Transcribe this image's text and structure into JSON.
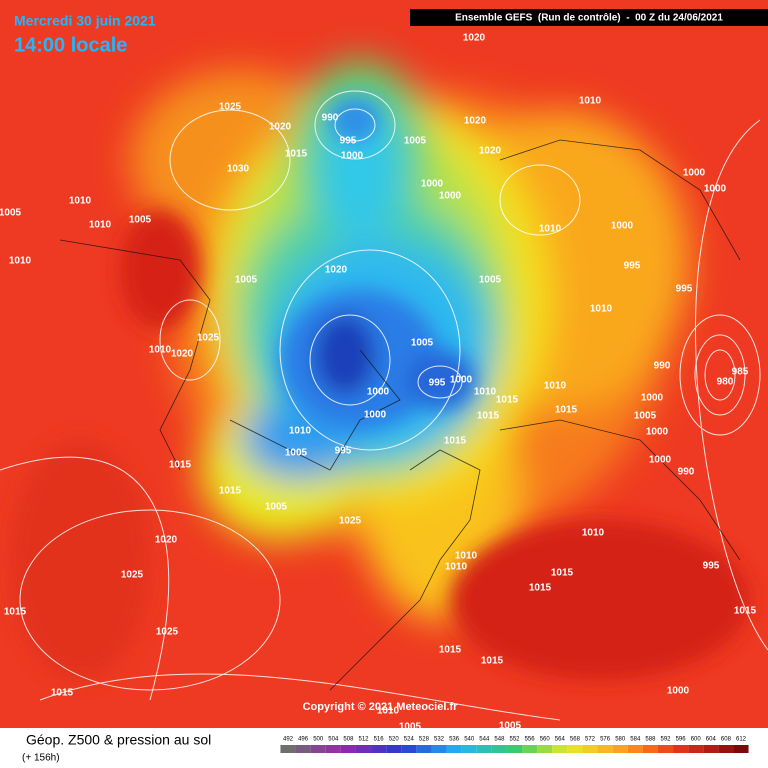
{
  "header": {
    "date": "Mercredi 30 juin 2021",
    "time": "14:00 locale",
    "model": "Ensemble GEFS  (Run de contrôle)  -  00 Z du 24/06/2021"
  },
  "copyright": "Copyright © 2021 Meteociel.fr",
  "legend": {
    "title": "Géop. Z500 & pression au sol",
    "lead": "(+ 156h)",
    "scale": [
      492,
      496,
      500,
      504,
      508,
      512,
      516,
      520,
      524,
      528,
      532,
      536,
      540,
      544,
      548,
      552,
      556,
      560,
      564,
      568,
      572,
      576,
      580,
      584,
      588,
      592,
      596,
      600,
      604,
      608,
      612
    ]
  },
  "isobar_labels": [
    "1020",
    "1010",
    "1025",
    "1020",
    "990",
    "995",
    "1000",
    "1015",
    "1005",
    "1020",
    "1020",
    "1030",
    "1000",
    "1000",
    "1000",
    "1000",
    "1005",
    "1010",
    "1010",
    "1005",
    "1010",
    "1000",
    "1010",
    "995",
    "1020",
    "1005",
    "1005",
    "995",
    "1010",
    "1025",
    "1010",
    "1020",
    "1005",
    "990",
    "985",
    "995",
    "1000",
    "1000",
    "1010",
    "1015",
    "1010",
    "980",
    "1000",
    "1015",
    "1000",
    "1015",
    "1005",
    "1010",
    "1000",
    "1015",
    "1005",
    "995",
    "1000",
    "990",
    "1015",
    "1015",
    "1005",
    "1025",
    "1010",
    "1020",
    "1010",
    "1010",
    "995",
    "1015",
    "1025",
    "1015",
    "1015",
    "1015",
    "1025",
    "1015",
    "1015",
    "1000",
    "1015",
    "1010",
    "1005",
    "1005"
  ]
}
